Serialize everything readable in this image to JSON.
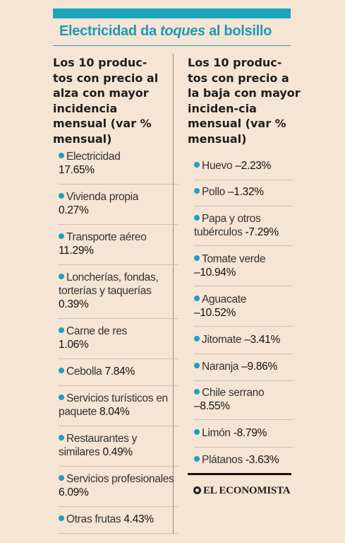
{
  "headline": {
    "part1": "Electricidad da ",
    "part2": "toques",
    "part3": " al bolsillo"
  },
  "left_column": {
    "heading": "Los 10 produc-tos con precio al alza con mayor incidencia mensual (var % mensual)",
    "items": [
      {
        "name": "Electricidad",
        "value": "17.65%"
      },
      {
        "name": "Vivienda propia",
        "value": "0.27%"
      },
      {
        "name": "Transporte aéreo",
        "value": "11.29%"
      },
      {
        "name": "Loncherías, fondas, torterías y taquerías",
        "value": "0.39%"
      },
      {
        "name": "Carne de res",
        "value": "1.06%"
      },
      {
        "name": "Cebolla",
        "value": "7.84%"
      },
      {
        "name": "Servicios turísticos en paquete",
        "value": "8.04%"
      },
      {
        "name": "Restaurantes y similares",
        "value": "0.49%"
      },
      {
        "name": "Servicios profesionales",
        "value": "6.09%"
      },
      {
        "name": "Otras frutas",
        "value": "4.43%"
      }
    ]
  },
  "right_column": {
    "heading": "Los 10 produc-tos con precio a la baja con mayor inciden-cia mensual (var % mensual)",
    "items": [
      {
        "name": "Huevo",
        "value": "–2.23%"
      },
      {
        "name": "Pollo",
        "value": "–1.32%"
      },
      {
        "name": "Papa y otros tubérculos",
        "value": "-7.29%"
      },
      {
        "name": "Tomate verde",
        "value": "–10.94%"
      },
      {
        "name": "Aguacate",
        "value": "–10.52%"
      },
      {
        "name": "Jitomate",
        "value": "–3.41%"
      },
      {
        "name": "Naranja",
        "value": "–9.86%"
      },
      {
        "name": "Chile serrano",
        "value": "–8.55%"
      },
      {
        "name": "Limón",
        "value": "-8.79%"
      },
      {
        "name": "Plátanos",
        "value": "-3.63%"
      }
    ]
  },
  "source_logo": "EL ECONOMISTA",
  "colors": {
    "accent": "#19a3bd",
    "background": "#f6e4d4",
    "text": "#1e1e1e"
  }
}
